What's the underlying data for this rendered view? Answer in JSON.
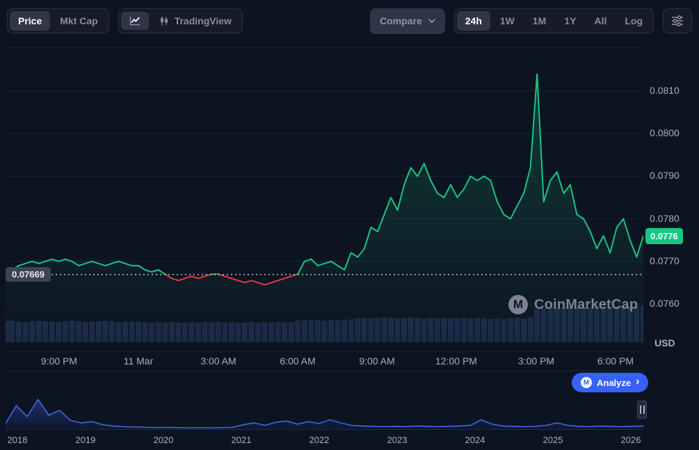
{
  "colors": {
    "background": "#0d1421",
    "up_green": "#16c784",
    "down_red": "#ea3943",
    "accent_blue": "#3861fb",
    "grid": "#1b2334",
    "volume_bar": "#1c2a47",
    "text_muted": "#858ca2",
    "text_axis": "#a9afbc"
  },
  "toolbar": {
    "price_label": "Price",
    "mktcap_label": "Mkt Cap",
    "tradingview_label": "TradingView",
    "compare_label": "Compare",
    "timeframes": [
      "24h",
      "1W",
      "1M",
      "1Y",
      "All",
      "Log"
    ],
    "active_timeframe": "24h"
  },
  "icons": {
    "logo_glyph": "M",
    "chevron_right": "›"
  },
  "watermark": {
    "text": "CoinMarketCap"
  },
  "analyze": {
    "label": "Analyze"
  },
  "chart_data": [
    {
      "type": "line",
      "title": "24h price chart with volume",
      "y_axis_unit": "USD",
      "y_ticks": [
        0.081,
        0.08,
        0.079,
        0.078,
        0.077,
        0.076
      ],
      "x_ticks": [
        "9:00 PM",
        "11 Mar",
        "3:00 AM",
        "6:00 AM",
        "9:00 AM",
        "12:00 PM",
        "3:00 PM",
        "6:00 PM"
      ],
      "ylim": [
        0.0751,
        0.08203
      ],
      "current_price": "0.0776",
      "reference_price": "0.07669",
      "reference_value": 0.07669,
      "line_color_up": "#16c784",
      "line_color_down": "#ea3943",
      "grid": "horizontal",
      "legend": "none",
      "prices": [
        0.0767,
        0.0768,
        0.0769,
        0.07695,
        0.077,
        0.07695,
        0.077,
        0.07705,
        0.077,
        0.07705,
        0.077,
        0.0769,
        0.07695,
        0.077,
        0.07695,
        0.0769,
        0.07695,
        0.077,
        0.07695,
        0.0769,
        0.0769,
        0.0768,
        0.07675,
        0.0768,
        0.0767,
        0.0766,
        0.07655,
        0.0766,
        0.07665,
        0.0766,
        0.07665,
        0.0767,
        0.0767,
        0.07665,
        0.0766,
        0.07655,
        0.0765,
        0.07655,
        0.0765,
        0.07645,
        0.0765,
        0.07655,
        0.0766,
        0.07665,
        0.0767,
        0.077,
        0.07705,
        0.0769,
        0.07695,
        0.077,
        0.0769,
        0.0768,
        0.0772,
        0.0771,
        0.0773,
        0.0778,
        0.0777,
        0.0781,
        0.0785,
        0.0782,
        0.0788,
        0.0792,
        0.079,
        0.0793,
        0.0789,
        0.0786,
        0.0785,
        0.0788,
        0.0785,
        0.0787,
        0.079,
        0.0789,
        0.079,
        0.0789,
        0.0784,
        0.0781,
        0.078,
        0.0783,
        0.0786,
        0.0792,
        0.0814,
        0.0784,
        0.0789,
        0.0791,
        0.0786,
        0.0788,
        0.0781,
        0.078,
        0.0777,
        0.0773,
        0.0776,
        0.0772,
        0.0778,
        0.078,
        0.0775,
        0.0771,
        0.0776
      ],
      "volume_bars": [
        30,
        31,
        30,
        29,
        30,
        31,
        30,
        30,
        29,
        30,
        31,
        30,
        29,
        30,
        30,
        31,
        30,
        29,
        30,
        30,
        29,
        29,
        28,
        29,
        28,
        29,
        28,
        28,
        29,
        28,
        29,
        28,
        29,
        28,
        29,
        28,
        28,
        29,
        28,
        29,
        28,
        29,
        28,
        29,
        31,
        32,
        31,
        32,
        31,
        32,
        31,
        32,
        33,
        34,
        35,
        34,
        35,
        36,
        35,
        34,
        35,
        36,
        35,
        34,
        35,
        34,
        35,
        34,
        34,
        35,
        34,
        35,
        34,
        33,
        34,
        33,
        34,
        35,
        34,
        36,
        48,
        49,
        50,
        49,
        50,
        51,
        50,
        49,
        50,
        51,
        50,
        51,
        50,
        51,
        52,
        51,
        52
      ]
    },
    {
      "type": "area",
      "name": "range-navigator",
      "x_ticks": [
        "2018",
        "2019",
        "2020",
        "2021",
        "2022",
        "2023",
        "2024",
        "2025",
        "2026"
      ],
      "line_color": "#3861fb",
      "values": [
        18,
        75,
        40,
        95,
        45,
        60,
        28,
        20,
        24,
        14,
        10,
        8,
        7,
        6,
        5,
        6,
        5,
        4,
        5,
        4,
        5,
        6,
        14,
        20,
        12,
        22,
        26,
        16,
        24,
        18,
        30,
        20,
        12,
        10,
        9,
        8,
        9,
        8,
        10,
        9,
        8,
        9,
        10,
        12,
        30,
        16,
        10,
        9,
        8,
        9,
        12,
        20,
        12,
        9,
        8,
        10,
        9,
        8,
        9,
        10
      ]
    }
  ]
}
